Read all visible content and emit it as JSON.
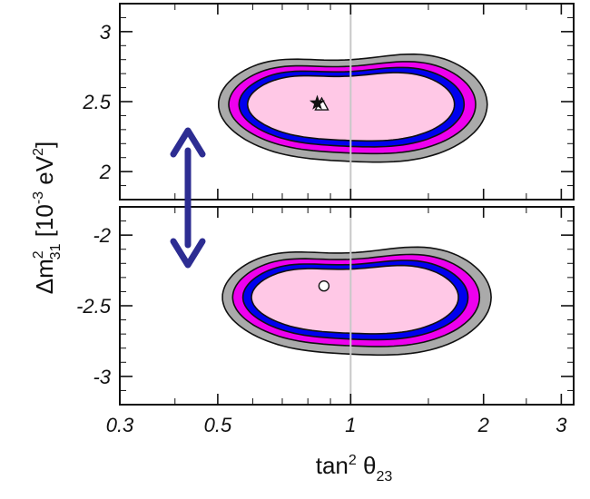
{
  "chart_data": {
    "type": "contour",
    "xlabel": {
      "base": "tan",
      "sup": "2",
      "mid": " θ",
      "sub": "23"
    },
    "ylabel": {
      "pre": "Δm",
      "sup": "2",
      "sub": "31",
      "post": " [10",
      "unit_sup": "-3",
      "unit": " eV",
      "unit_sup2": "2",
      "close": "]"
    },
    "x_scale": "log",
    "xlim": [
      0.3,
      3.2
    ],
    "x_ticks": [
      "0.3",
      "0.5",
      "1",
      "2",
      "3"
    ],
    "x_tick_values": [
      0.3,
      0.5,
      1,
      2,
      3
    ],
    "panels": [
      {
        "name": "normal-hierarchy",
        "ylim": [
          1.8,
          3.2
        ],
        "y_ticks": [
          "2",
          "2.5",
          "3"
        ],
        "y_tick_values": [
          2,
          2.5,
          3
        ],
        "best_fit_star": {
          "x": 0.84,
          "y": 2.49
        },
        "best_fit_triangle": {
          "x": 0.86,
          "y": 2.48
        },
        "contour_center": {
          "x": 0.97,
          "y": 2.48
        }
      },
      {
        "name": "inverted-hierarchy",
        "ylim": [
          -3.2,
          -1.8
        ],
        "y_ticks": [
          "-2",
          "-2.5",
          "-3"
        ],
        "y_tick_values": [
          -2,
          -2.5,
          -3
        ],
        "best_fit_circle": {
          "x": 0.87,
          "y": -2.36
        },
        "contour_center": {
          "x": 0.99,
          "y": -2.44
        }
      }
    ],
    "contour_levels": [
      {
        "name": "outer",
        "fill": "#aaaaaa"
      },
      {
        "name": "second",
        "fill": "#ee00ee"
      },
      {
        "name": "third",
        "fill": "#0000ee"
      },
      {
        "name": "inner",
        "fill": "#ffc8e6"
      }
    ],
    "reference_line_x": 1,
    "arrow_color": "#2d2d92"
  }
}
